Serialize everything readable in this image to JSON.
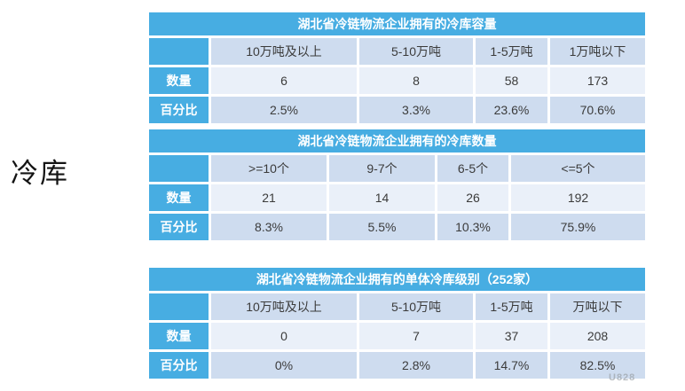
{
  "page": {
    "side_label": "冷库",
    "watermark": "U828"
  },
  "colors": {
    "accent_blue": "#47ADE2",
    "band_dark": "#CEDCEF",
    "band_light": "#EAF0F9",
    "text_dark": "#3b3b3b"
  },
  "tables": [
    {
      "title": "湖北省冷链物流企业拥有的冷库容量",
      "columns": [
        "10万吨及以上",
        "5-10万吨",
        "1-5万吨",
        "1万吨以下"
      ],
      "rows": [
        {
          "label": "数量",
          "values": [
            "6",
            "8",
            "58",
            "173"
          ]
        },
        {
          "label": "百分比",
          "values": [
            "2.5%",
            "3.3%",
            "23.6%",
            "70.6%"
          ]
        }
      ]
    },
    {
      "title": "湖北省冷链物流企业拥有的冷库数量",
      "columns": [
        ">=10个",
        "9-7个",
        "6-5个",
        "<=5个"
      ],
      "rows": [
        {
          "label": "数量",
          "values": [
            "21",
            "14",
            "26",
            "192"
          ]
        },
        {
          "label": "百分比",
          "values": [
            "8.3%",
            "5.5%",
            "10.3%",
            "75.9%"
          ]
        }
      ]
    },
    {
      "title": "湖北省冷链物流企业拥有的单体冷库级别（252家）",
      "columns": [
        "10万吨及以上",
        "5-10万吨",
        "1-5万吨",
        "万吨以下"
      ],
      "rows": [
        {
          "label": "数量",
          "values": [
            "0",
            "7",
            "37",
            "208"
          ]
        },
        {
          "label": "百分比",
          "values": [
            "0%",
            "2.8%",
            "14.7%",
            "82.5%"
          ]
        }
      ]
    }
  ]
}
